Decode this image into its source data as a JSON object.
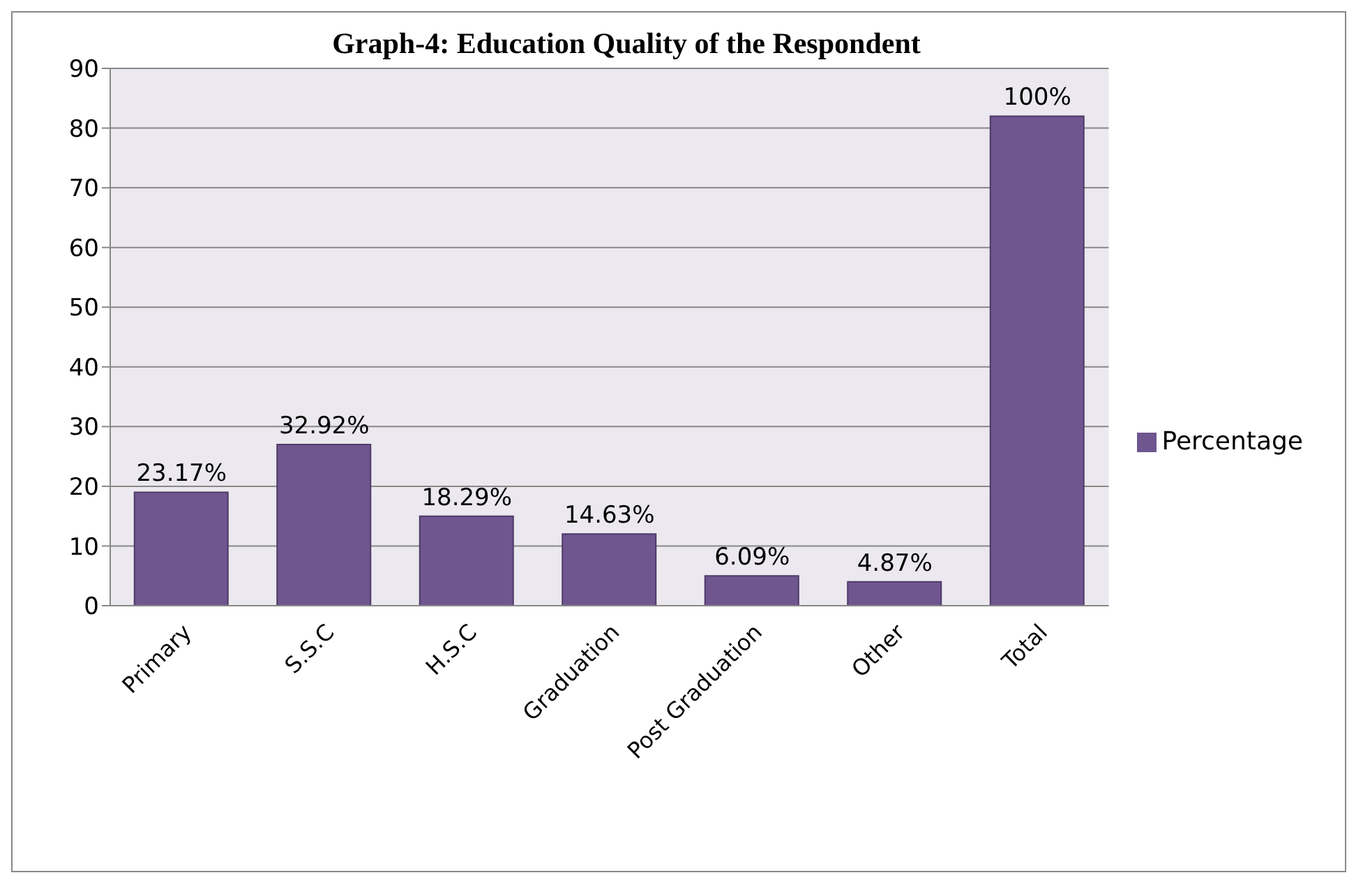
{
  "chart_data": {
    "type": "bar",
    "title": "Graph-4: Education Quality of the Respondent",
    "categories": [
      "Primary",
      "S.S.C",
      "H.S.C",
      "Graduation",
      "Post Graduation",
      "Other",
      "Total"
    ],
    "series": [
      {
        "name": "Percentage",
        "color": "#6f568f",
        "values": [
          19,
          27,
          15,
          12,
          5,
          4,
          82
        ]
      }
    ],
    "annotations": [
      {
        "text": "23.17%",
        "x": "Primary",
        "y": 19
      },
      {
        "text": "32.92%",
        "x": "S.S.C",
        "y": 27
      },
      {
        "text": "18.29%",
        "x": "H.S.C",
        "y": 15
      },
      {
        "text": "14.63%",
        "x": "Graduation",
        "y": 12
      },
      {
        "text": "6.09%",
        "x": "Post Graduation",
        "y": 5
      },
      {
        "text": "4.87%",
        "x": "Other",
        "y": 4
      },
      {
        "text": "100%",
        "x": "Total",
        "y": 82
      }
    ],
    "ylim": [
      0,
      90
    ],
    "yticks": [
      0,
      10,
      20,
      30,
      40,
      50,
      60,
      70,
      80,
      90
    ],
    "grid": "y",
    "legend": "right"
  }
}
